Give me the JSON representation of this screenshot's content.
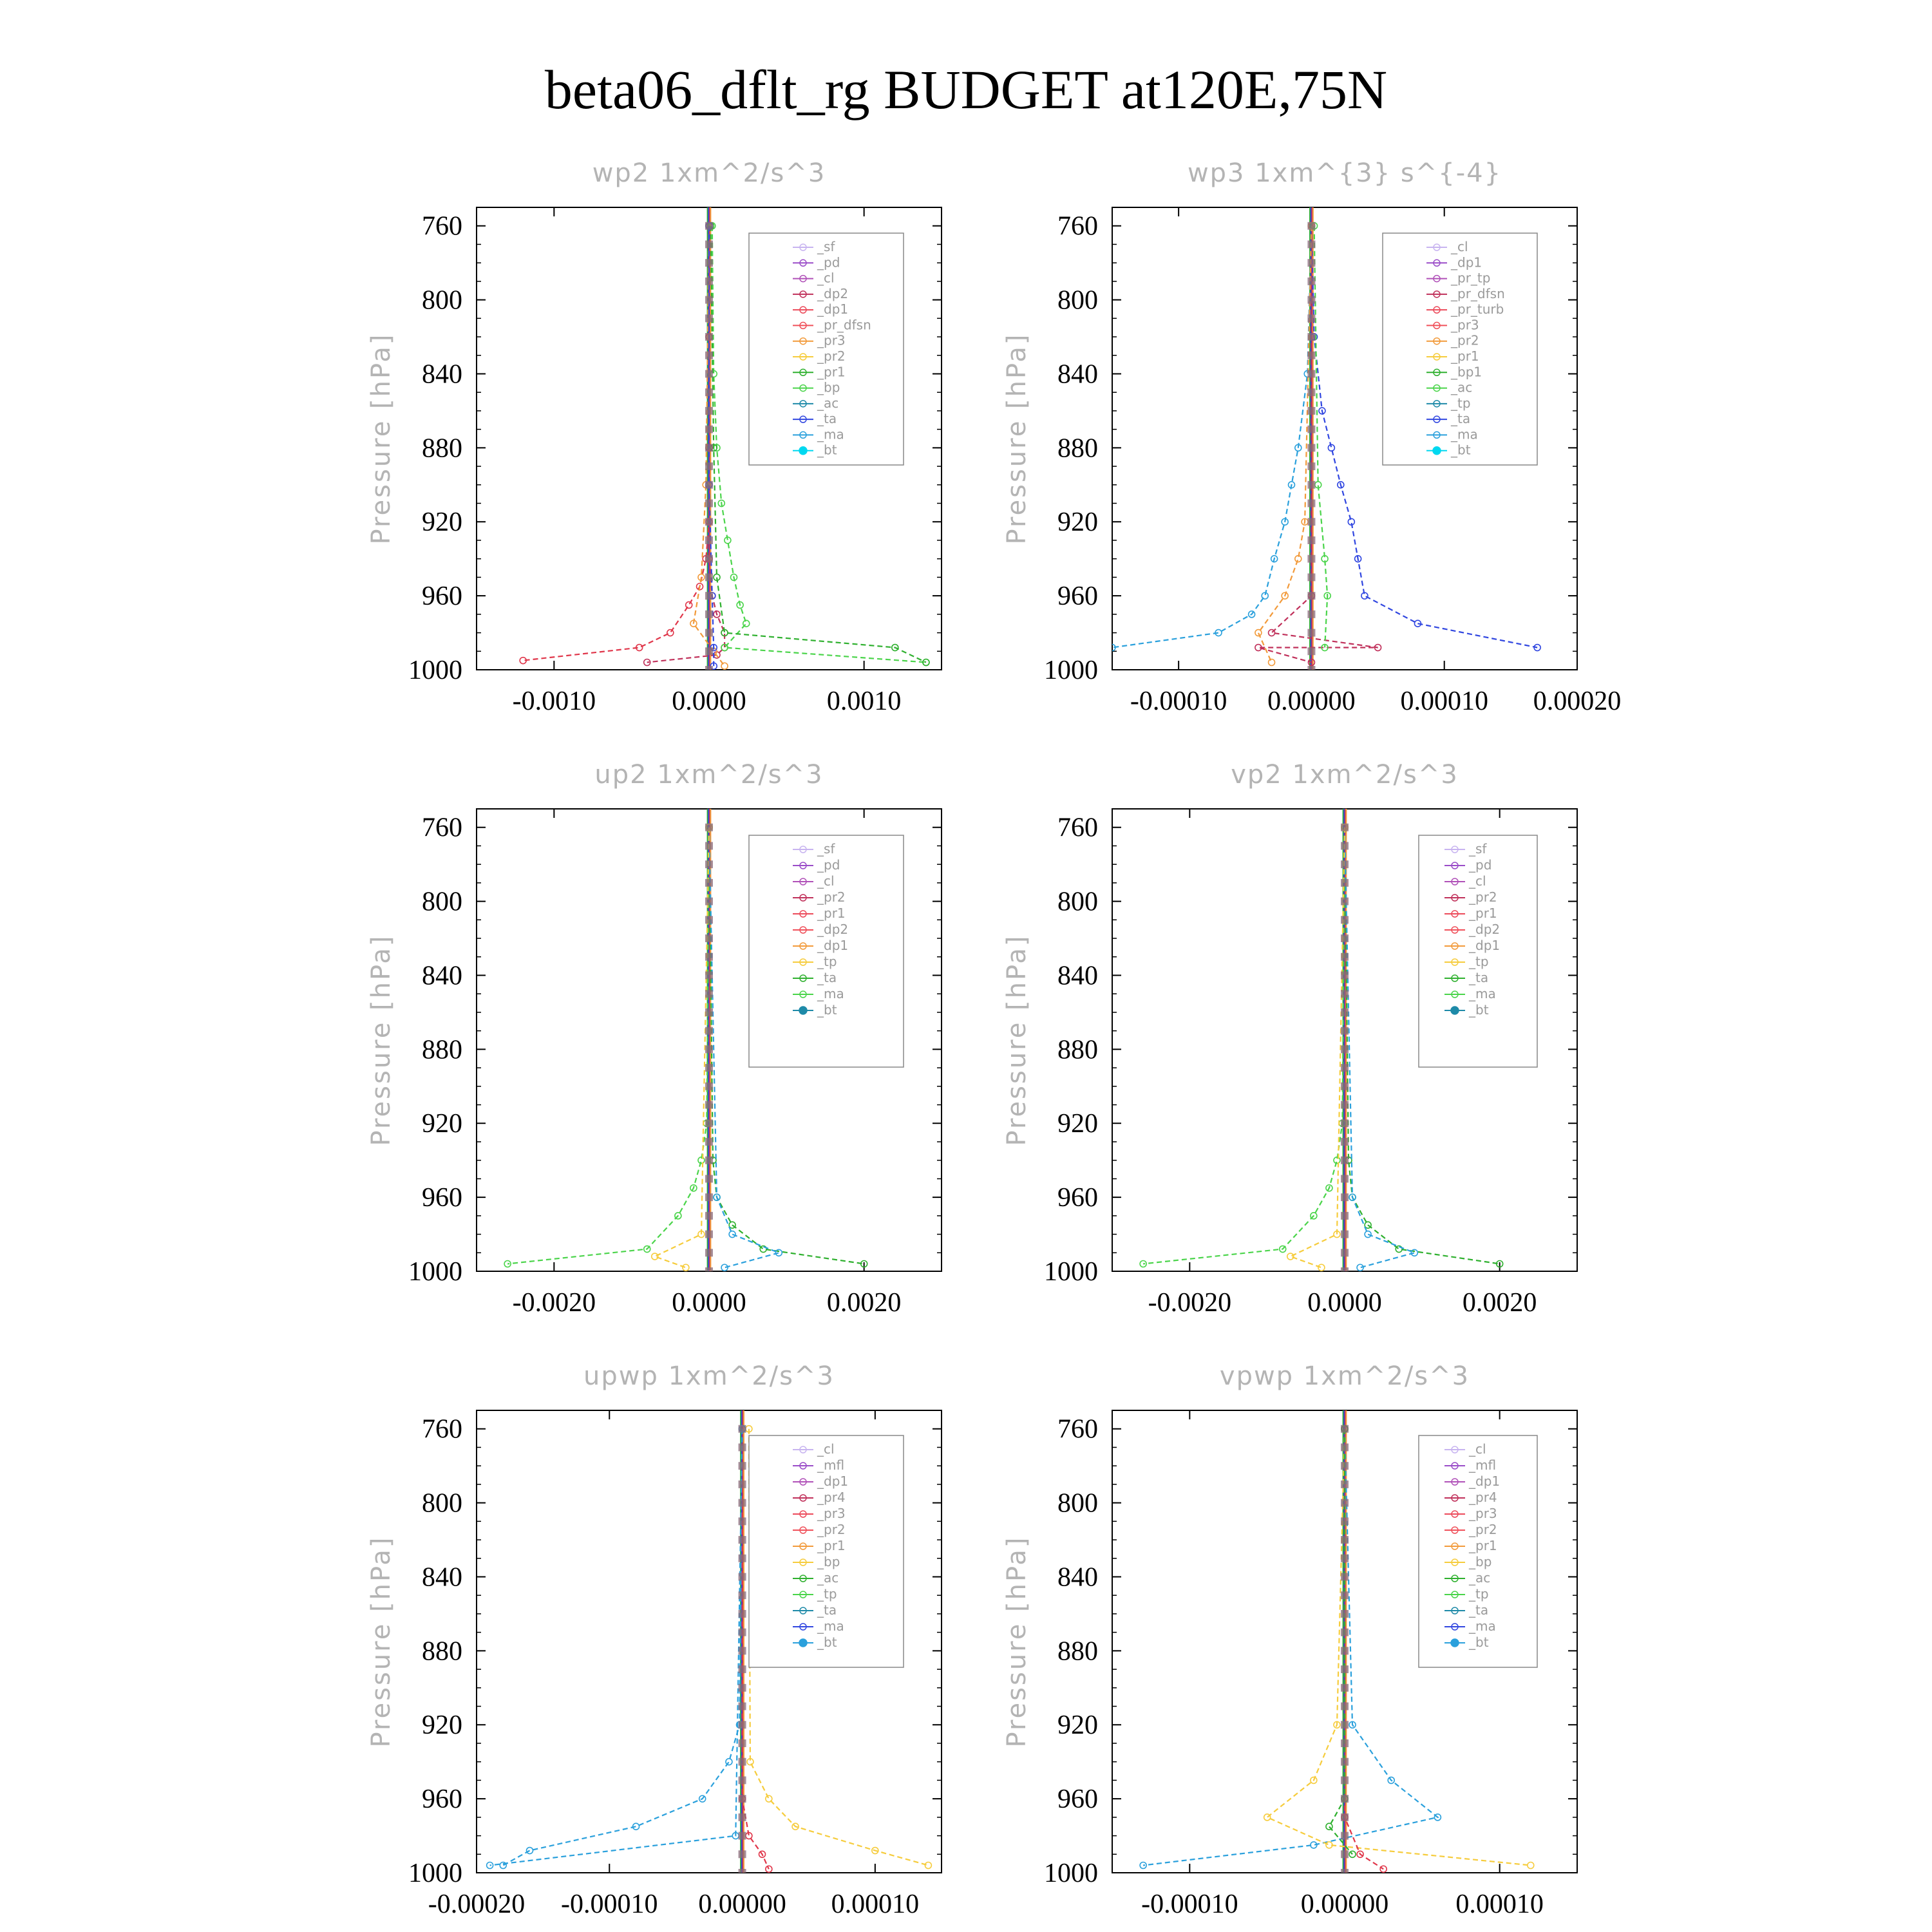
{
  "title": "beta06_dflt_rg  BUDGET at120E,75N",
  "colors": {
    "sf": "#c8b4f0",
    "pd": "#9a4cc8",
    "cl": "#b050b8",
    "dp2": "#c0305a",
    "dp1": "#ec4a5a",
    "pr_dfsn": "#f0505a",
    "pr3": "#f29a3a",
    "pr2": "#f6cc3c",
    "pr1": "#2eb02e",
    "bp": "#4ad44a",
    "ac": "#1e8aa8",
    "ta": "#3046e0",
    "ma": "#2aa0dc",
    "bt": "#00d8f0"
  },
  "chart_data": [
    {
      "type": "line",
      "title": "wp2  1xm^2/s^3",
      "ylabel": "Pressure [hPa]",
      "xlim": [
        -0.0015,
        0.0015
      ],
      "ylim": [
        1000,
        750
      ],
      "yticks": [
        "760",
        "800",
        "840",
        "880",
        "920",
        "960",
        "1000"
      ],
      "xticks": [
        "-0.0010",
        "0.0000",
        "0.0010"
      ],
      "legend": [
        "_sf",
        "_pd",
        "_cl",
        "_dp2",
        "_dp1",
        "_pr_dfsn",
        "_pr3",
        "_pr2",
        "_pr1",
        "_bp",
        "_ac",
        "_ta",
        "_ma",
        "_bt"
      ],
      "series": [
        {
          "name": "_dp1",
          "color": "#e0364a",
          "x": [
            0,
            0,
            0,
            0,
            -2e-05,
            -6e-05,
            -0.00013,
            -0.00025,
            -0.00045,
            -0.0012
          ],
          "y": [
            760,
            820,
            880,
            920,
            940,
            955,
            965,
            980,
            988,
            995
          ]
        },
        {
          "name": "_dp2",
          "color": "#c0305a",
          "x": [
            0,
            0,
            0,
            2e-05,
            5e-05,
            0.0001,
            0.0001,
            5e-05,
            -0.0004
          ],
          "y": [
            760,
            880,
            940,
            960,
            970,
            980,
            988,
            992,
            996
          ]
        },
        {
          "name": "_bp",
          "color": "#4ad44a",
          "x": [
            2e-05,
            3e-05,
            5e-05,
            8e-05,
            0.00012,
            0.00016,
            0.0002,
            0.00024,
            0.0001,
            0.0014
          ],
          "y": [
            760,
            840,
            880,
            910,
            930,
            950,
            965,
            975,
            988,
            996
          ]
        },
        {
          "name": "_pr1",
          "color": "#2eb02e",
          "x": [
            1e-05,
            3e-05,
            5e-05,
            0.0001,
            0.0012,
            0.0014
          ],
          "y": [
            760,
            880,
            950,
            980,
            988,
            996
          ]
        },
        {
          "name": "_pr3",
          "color": "#f29a3a",
          "x": [
            0,
            -2e-05,
            -5e-05,
            -0.0001,
            3e-05,
            0.0001
          ],
          "y": [
            760,
            900,
            950,
            975,
            990,
            998
          ]
        },
        {
          "name": "_ta",
          "color": "#3046e0",
          "x": [
            0,
            0,
            2e-05,
            3e-05,
            3e-05
          ],
          "y": [
            760,
            900,
            960,
            988,
            998
          ]
        }
      ]
    },
    {
      "type": "line",
      "title": "wp3  1xm^{3} s^{-4}",
      "ylabel": "Pressure [hPa]",
      "xlim": [
        -0.00015,
        0.0002
      ],
      "ylim": [
        1000,
        750
      ],
      "yticks": [
        "760",
        "800",
        "840",
        "880",
        "920",
        "960",
        "1000"
      ],
      "xticks": [
        "-0.00010",
        "0.00000",
        "0.00010",
        "0.00020"
      ],
      "legend": [
        "_cl",
        "_dp1",
        "_pr_tp",
        "_pr_dfsn",
        "_pr_turb",
        "_pr3",
        "_pr2",
        "_pr1",
        "_bp1",
        "_ac",
        "_tp",
        "_ta",
        "_ma",
        "_bt"
      ],
      "series": [
        {
          "name": "_ta",
          "color": "#3046e0",
          "x": [
            0,
            2e-06,
            8e-06,
            1.5e-05,
            2.2e-05,
            3e-05,
            3.5e-05,
            4e-05,
            8e-05,
            0.00017
          ],
          "y": [
            760,
            820,
            860,
            880,
            900,
            920,
            940,
            960,
            975,
            988
          ]
        },
        {
          "name": "_tp",
          "color": "#2aa0dc",
          "x": [
            0,
            -3e-06,
            -1e-05,
            -1.5e-05,
            -2e-05,
            -2.8e-05,
            -3.5e-05,
            -4.5e-05,
            -7e-05,
            -0.00015
          ],
          "y": [
            760,
            840,
            880,
            900,
            920,
            940,
            960,
            970,
            980,
            988
          ]
        },
        {
          "name": "_dp1",
          "color": "#c0305a",
          "x": [
            0,
            0,
            -3e-05,
            5e-05,
            -4e-05,
            0
          ],
          "y": [
            760,
            960,
            980,
            988,
            988,
            996
          ]
        },
        {
          "name": "_pr2",
          "color": "#f29a3a",
          "x": [
            0,
            -5e-06,
            -1e-05,
            -2e-05,
            -4e-05,
            -3e-05
          ],
          "y": [
            760,
            920,
            940,
            960,
            980,
            996
          ]
        },
        {
          "name": "_bp1",
          "color": "#4ad44a",
          "x": [
            2e-06,
            5e-06,
            1e-05,
            1.2e-05,
            1e-05
          ],
          "y": [
            760,
            900,
            940,
            960,
            988
          ]
        }
      ]
    },
    {
      "type": "line",
      "title": "up2  1xm^2/s^3",
      "ylabel": "Pressure [hPa]",
      "xlim": [
        -0.003,
        0.003
      ],
      "ylim": [
        1000,
        750
      ],
      "yticks": [
        "760",
        "800",
        "840",
        "880",
        "920",
        "960",
        "1000"
      ],
      "xticks": [
        "-0.0020",
        "0.0000",
        "0.0020"
      ],
      "legend": [
        "_sf",
        "_pd",
        "_cl",
        "_pr2",
        "_pr1",
        "_dp2",
        "_dp1",
        "_tp",
        "_ta",
        "_ma",
        "_bt"
      ],
      "series": [
        {
          "name": "_dp1",
          "color": "#4ad44a",
          "x": [
            0,
            -3e-05,
            -0.0001,
            -0.0002,
            -0.0004,
            -0.0008,
            -0.0026
          ],
          "y": [
            760,
            920,
            940,
            955,
            970,
            988,
            996
          ]
        },
        {
          "name": "_dp2",
          "color": "#2eb02e",
          "x": [
            0,
            5e-05,
            0.0001,
            0.0003,
            0.0007,
            0.002
          ],
          "y": [
            760,
            940,
            960,
            975,
            988,
            996
          ]
        },
        {
          "name": "_tp",
          "color": "#2aa0dc",
          "x": [
            0,
            0.0001,
            0.0003,
            0.0009,
            0.0002
          ],
          "y": [
            760,
            960,
            980,
            990,
            998
          ]
        },
        {
          "name": "_pr2",
          "color": "#f6cc3c",
          "x": [
            0,
            -0.0001,
            -0.0007,
            -0.0003
          ],
          "y": [
            760,
            980,
            992,
            998
          ]
        }
      ]
    },
    {
      "type": "line",
      "title": "vp2  1xm^2/s^3",
      "ylabel": "Pressure [hPa]",
      "xlim": [
        -0.003,
        0.003
      ],
      "ylim": [
        1000,
        750
      ],
      "yticks": [
        "760",
        "800",
        "840",
        "880",
        "920",
        "960",
        "1000"
      ],
      "xticks": [
        "-0.0020",
        "0.0000",
        "0.0020"
      ],
      "legend": [
        "_sf",
        "_pd",
        "_cl",
        "_pr2",
        "_pr1",
        "_dp2",
        "_dp1",
        "_tp",
        "_ta",
        "_ma",
        "_bt"
      ],
      "series": [
        {
          "name": "_dp1",
          "color": "#4ad44a",
          "x": [
            0,
            -3e-05,
            -0.0001,
            -0.0002,
            -0.0004,
            -0.0008,
            -0.0026
          ],
          "y": [
            760,
            920,
            940,
            955,
            970,
            988,
            996
          ]
        },
        {
          "name": "_dp2",
          "color": "#2eb02e",
          "x": [
            0,
            5e-05,
            0.0001,
            0.0003,
            0.0007,
            0.002
          ],
          "y": [
            760,
            940,
            960,
            975,
            988,
            996
          ]
        },
        {
          "name": "_tp",
          "color": "#2aa0dc",
          "x": [
            0,
            0.0001,
            0.0003,
            0.0009,
            0.0002
          ],
          "y": [
            760,
            960,
            980,
            990,
            998
          ]
        },
        {
          "name": "_pr2",
          "color": "#f6cc3c",
          "x": [
            0,
            -0.0001,
            -0.0007,
            -0.0003
          ],
          "y": [
            760,
            980,
            992,
            998
          ]
        }
      ]
    },
    {
      "type": "line",
      "title": "upwp  1xm^2/s^3",
      "ylabel": "Pressure [hPa]",
      "xlim": [
        -0.0002,
        0.00015
      ],
      "ylim": [
        1000,
        750
      ],
      "yticks": [
        "760",
        "800",
        "840",
        "880",
        "920",
        "960",
        "1000"
      ],
      "xticks": [
        "-0.00020",
        "-0.00010",
        "0.00000",
        "0.00010"
      ],
      "legend": [
        "_cl",
        "_mfl",
        "_dp1",
        "_pr4",
        "_pr3",
        "_pr2",
        "_pr1",
        "_bp",
        "_ac",
        "_tp",
        "_ta",
        "_ma",
        "_bt"
      ],
      "series": [
        {
          "name": "_tp",
          "color": "#2aa0dc",
          "x": [
            0,
            -2e-06,
            -1e-05,
            -3e-05,
            -8e-05,
            -0.00016,
            -0.00018
          ],
          "y": [
            760,
            920,
            940,
            960,
            975,
            988,
            996
          ]
        },
        {
          "name": "_pr1",
          "color": "#f6cc3c",
          "x": [
            5e-06,
            6e-06,
            2e-05,
            4e-05,
            0.0001,
            0.00014
          ],
          "y": [
            760,
            940,
            960,
            975,
            988,
            996
          ]
        },
        {
          "name": "_dp1",
          "color": "#e0364a",
          "x": [
            0,
            0,
            5e-06,
            1.5e-05,
            2e-05
          ],
          "y": [
            760,
            960,
            980,
            990,
            998
          ]
        },
        {
          "name": "_ma",
          "color": "#2aa0dc",
          "x": [
            0,
            -5e-06,
            -0.00019
          ],
          "y": [
            760,
            980,
            996
          ]
        }
      ]
    },
    {
      "type": "line",
      "title": "vpwp  1xm^2/s^3",
      "ylabel": "Pressure [hPa]",
      "xlim": [
        -0.00015,
        0.00015
      ],
      "ylim": [
        1000,
        750
      ],
      "yticks": [
        "760",
        "800",
        "840",
        "880",
        "920",
        "960",
        "1000"
      ],
      "xticks": [
        "-0.00010",
        "0.00000",
        "0.00010"
      ],
      "legend": [
        "_cl",
        "_mfl",
        "_dp1",
        "_pr4",
        "_pr3",
        "_pr2",
        "_pr1",
        "_bp",
        "_ac",
        "_tp",
        "_ta",
        "_ma",
        "_bt"
      ],
      "series": [
        {
          "name": "_tp",
          "color": "#2aa0dc",
          "x": [
            0,
            5e-06,
            3e-05,
            6e-05,
            -2e-05,
            -0.00013
          ],
          "y": [
            760,
            920,
            950,
            970,
            985,
            996
          ]
        },
        {
          "name": "_pr2",
          "color": "#f6cc3c",
          "x": [
            0,
            -5e-06,
            -2e-05,
            -5e-05,
            -1e-05,
            0.00012
          ],
          "y": [
            760,
            920,
            950,
            970,
            985,
            996
          ]
        },
        {
          "name": "_dp1",
          "color": "#e0364a",
          "x": [
            0,
            0,
            1e-05,
            2.5e-05
          ],
          "y": [
            760,
            970,
            990,
            998
          ]
        },
        {
          "name": "_bp",
          "color": "#2eb02e",
          "x": [
            0,
            0,
            -1e-05,
            5e-06
          ],
          "y": [
            760,
            960,
            975,
            990
          ]
        }
      ]
    }
  ]
}
